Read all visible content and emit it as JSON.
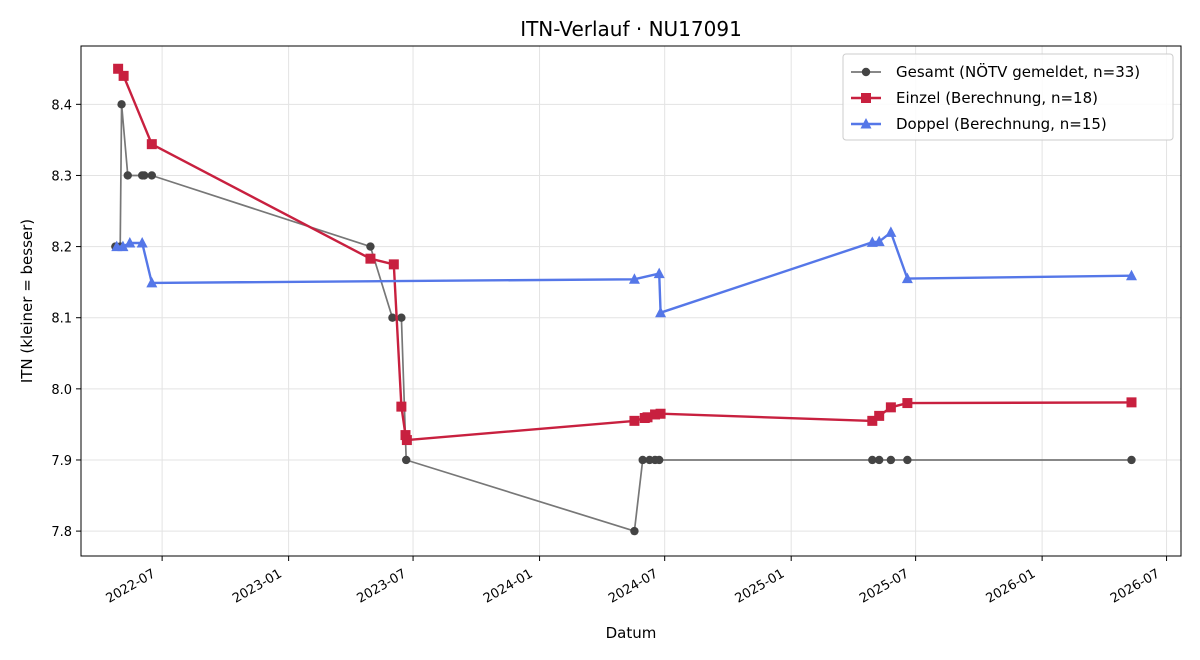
{
  "chart_data": {
    "type": "line",
    "title": "ITN-Verlauf · NU17091",
    "xlabel": "Datum",
    "ylabel": "ITN  (kleiner = besser)",
    "xlim": [
      "2022-03-05",
      "2026-07-22"
    ],
    "ylim": [
      7.765,
      8.482
    ],
    "x_ticks": [
      "2022-07",
      "2023-01",
      "2023-07",
      "2024-01",
      "2024-07",
      "2025-01",
      "2025-07",
      "2026-01",
      "2026-07"
    ],
    "y_ticks": [
      "7.8",
      "7.9",
      "8.0",
      "8.1",
      "8.2",
      "8.3",
      "8.4"
    ],
    "grid": true,
    "legend_position": "top-right",
    "series": [
      {
        "name": "Gesamt (NÖTV gemeldet, n=33)",
        "color": "#777777",
        "marker_color": "#444444",
        "marker": "circle",
        "points": [
          [
            "2022-04-24",
            8.2
          ],
          [
            "2022-05-01",
            8.2
          ],
          [
            "2022-05-03",
            8.4
          ],
          [
            "2022-05-12",
            8.3
          ],
          [
            "2022-06-02",
            8.3
          ],
          [
            "2022-06-05",
            8.3
          ],
          [
            "2022-06-16",
            8.3
          ],
          [
            "2023-04-30",
            8.2
          ],
          [
            "2023-06-01",
            8.1
          ],
          [
            "2023-06-14",
            8.1
          ],
          [
            "2023-06-21",
            7.9
          ],
          [
            "2024-05-18",
            7.8
          ],
          [
            "2024-05-30",
            7.9
          ],
          [
            "2024-06-09",
            7.9
          ],
          [
            "2024-06-17",
            7.9
          ],
          [
            "2024-06-23",
            7.9
          ],
          [
            "2025-04-29",
            7.9
          ],
          [
            "2025-05-09",
            7.9
          ],
          [
            "2025-05-26",
            7.9
          ],
          [
            "2025-06-19",
            7.9
          ],
          [
            "2026-05-11",
            7.9
          ]
        ]
      },
      {
        "name": "Einzel (Berechnung, n=18)",
        "color": "#c8203f",
        "marker": "square",
        "points": [
          [
            "2022-04-28",
            8.45
          ],
          [
            "2022-05-06",
            8.44
          ],
          [
            "2022-06-16",
            8.344
          ],
          [
            "2023-04-30",
            8.183
          ],
          [
            "2023-06-03",
            8.175
          ],
          [
            "2023-06-14",
            7.975
          ],
          [
            "2023-06-20",
            7.935
          ],
          [
            "2023-06-22",
            7.928
          ],
          [
            "2024-05-18",
            7.955
          ],
          [
            "2024-06-02",
            7.959
          ],
          [
            "2024-06-06",
            7.96
          ],
          [
            "2024-06-17",
            7.964
          ],
          [
            "2024-06-25",
            7.965
          ],
          [
            "2025-04-29",
            7.955
          ],
          [
            "2025-05-09",
            7.962
          ],
          [
            "2025-05-26",
            7.974
          ],
          [
            "2025-06-19",
            7.98
          ],
          [
            "2026-05-11",
            7.981
          ]
        ]
      },
      {
        "name": "Doppel (Berechnung, n=15)",
        "color": "#5577e8",
        "marker": "triangle",
        "points": [
          [
            "2022-04-26",
            8.2
          ],
          [
            "2022-05-05",
            8.2
          ],
          [
            "2022-05-15",
            8.205
          ],
          [
            "2022-06-02",
            8.205
          ],
          [
            "2022-06-16",
            8.149
          ],
          [
            "2024-05-18",
            8.154
          ],
          [
            "2024-06-23",
            8.162
          ],
          [
            "2024-06-25",
            8.107
          ],
          [
            "2025-04-29",
            8.206
          ],
          [
            "2025-05-09",
            8.207
          ],
          [
            "2025-05-26",
            8.22
          ],
          [
            "2025-06-19",
            8.155
          ],
          [
            "2026-05-11",
            8.159
          ]
        ]
      }
    ]
  }
}
